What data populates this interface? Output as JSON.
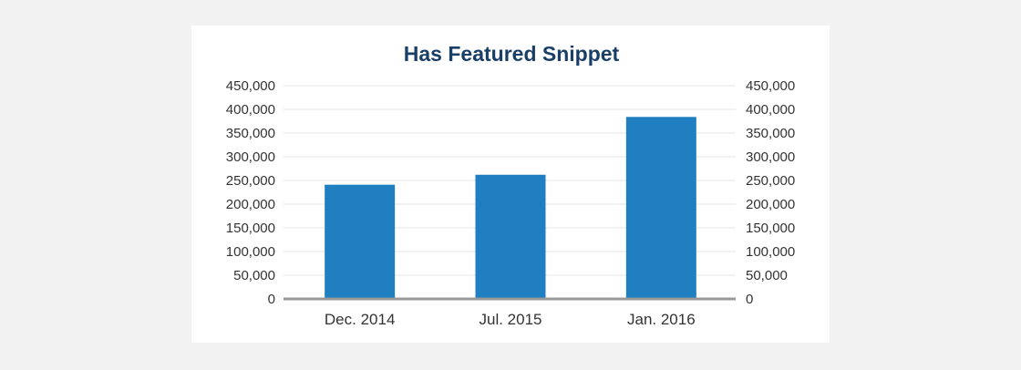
{
  "chart_data": {
    "type": "bar",
    "title": "Has Featured Snippet",
    "categories": [
      "Dec. 2014",
      "Jul. 2015",
      "Jan. 2016"
    ],
    "values": [
      241000,
      262000,
      384000
    ],
    "yticks": [
      "0",
      "50,000",
      "100,000",
      "150,000",
      "200,000",
      "250,000",
      "300,000",
      "350,000",
      "400,000",
      "450,000"
    ],
    "ylim": [
      0,
      450000
    ],
    "grid": true,
    "secondary_axis": true,
    "colors": {
      "bar": "#1f7fc1",
      "axis": "#999999",
      "grid": "#e6e6e6",
      "title": "#1a3f66"
    }
  }
}
